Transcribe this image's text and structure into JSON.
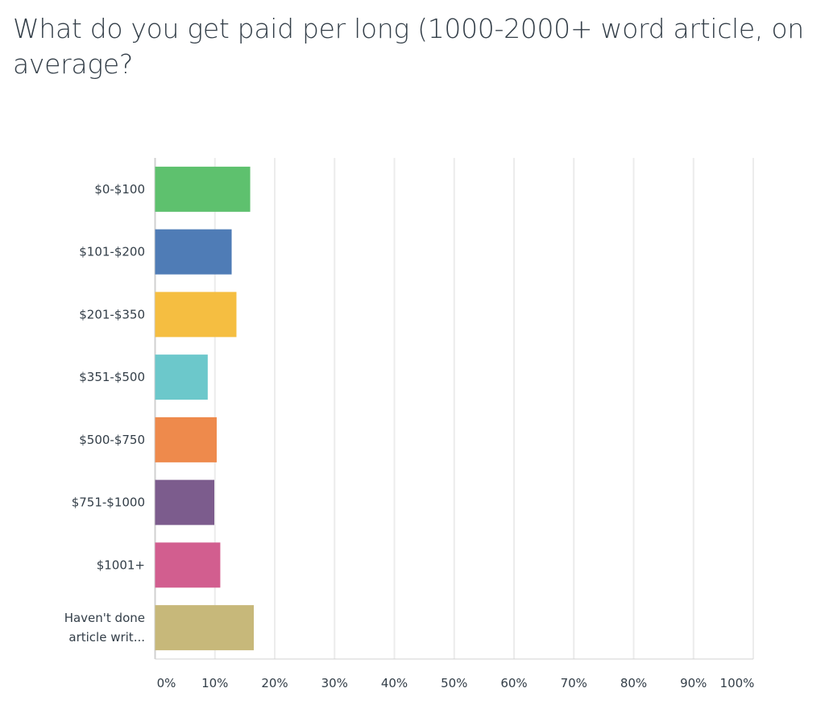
{
  "chart_data": {
    "type": "bar",
    "orientation": "horizontal",
    "title": "What do you get paid per long (1000-2000+ word article, on average?",
    "categories": [
      [
        "$0-$100"
      ],
      [
        "$101-$200"
      ],
      [
        "$201-$350"
      ],
      [
        "$351-$500"
      ],
      [
        "$500-$750"
      ],
      [
        "$751-$1000"
      ],
      [
        "$1001+"
      ],
      [
        "Haven't done",
        "article writ..."
      ]
    ],
    "values": [
      15.9,
      12.8,
      13.6,
      8.8,
      10.3,
      9.9,
      10.9,
      16.5
    ],
    "colors": [
      "#5ec16e",
      "#4f7cb6",
      "#f5be41",
      "#6cc8cb",
      "#ee8a4c",
      "#7c5c8d",
      "#d25e8f",
      "#c7b87a"
    ],
    "xlim": [
      0,
      100
    ],
    "xticks": [
      "0%",
      "10%",
      "20%",
      "30%",
      "40%",
      "50%",
      "60%",
      "70%",
      "80%",
      "90%",
      "100%"
    ],
    "xlabel": "",
    "ylabel": "",
    "grid": true,
    "legend": "none"
  }
}
